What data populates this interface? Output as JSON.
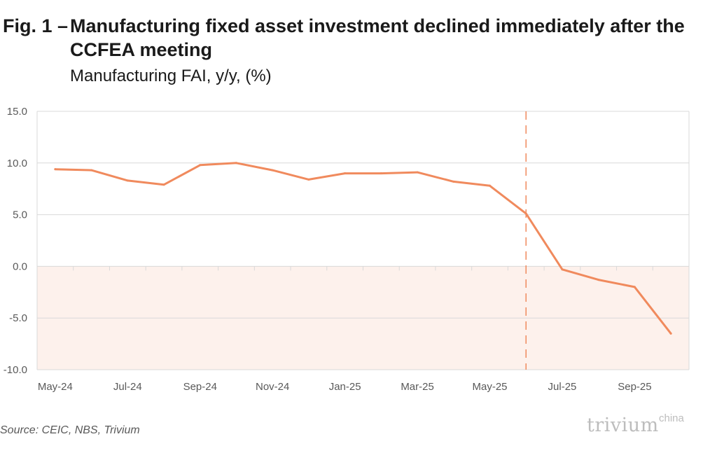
{
  "figure": {
    "title_prefix": "Fig. 1 –",
    "title": "Manufacturing fixed asset investment declined immediately after the CCFEA meeting",
    "subtitle": "Manufacturing FAI, y/y, (%)",
    "source": "Source: CEIC, NBS, Trivium",
    "brand": "trivium",
    "brand_sup": "china"
  },
  "colors": {
    "line": "#f08a5d",
    "negative_band": "#fdf1ec",
    "grid": "#d9d9d9",
    "tick_text": "#595959",
    "brand": "#bdbdbd"
  },
  "chart_data": {
    "type": "line",
    "title": "Manufacturing fixed asset investment declined immediately after the CCFEA meeting",
    "subtitle": "Manufacturing FAI, y/y, (%)",
    "xlabel": "",
    "ylabel": "",
    "x": [
      "May-24",
      "Jun-24",
      "Jul-24",
      "Aug-24",
      "Sep-24",
      "Oct-24",
      "Nov-24",
      "Dec-24",
      "Jan-25",
      "Feb-25",
      "Mar-25",
      "Apr-25",
      "May-25",
      "Jun-25",
      "Jul-25",
      "Aug-25",
      "Sep-25",
      "Oct-25"
    ],
    "x_tick_labels": [
      "May-24",
      "Jul-24",
      "Sep-24",
      "Nov-24",
      "Jan-25",
      "Mar-25",
      "May-25",
      "Jul-25",
      "Sep-25"
    ],
    "series": [
      {
        "values": [
          9.4,
          9.3,
          8.3,
          7.9,
          9.8,
          10.0,
          9.3,
          8.4,
          9.0,
          9.0,
          9.1,
          8.2,
          7.8,
          5.1,
          -0.3,
          -1.3,
          -2.0,
          -6.5
        ]
      }
    ],
    "ylim": [
      -10.0,
      15.0
    ],
    "y_ticks": [
      "15.0",
      "10.0",
      "5.0",
      "0.0",
      "-5.0",
      "-10.0"
    ],
    "grid": true,
    "negative_region_shaded": true,
    "marker_line": {
      "x": "Jun-25",
      "style": "dashed"
    },
    "legend": "none"
  }
}
